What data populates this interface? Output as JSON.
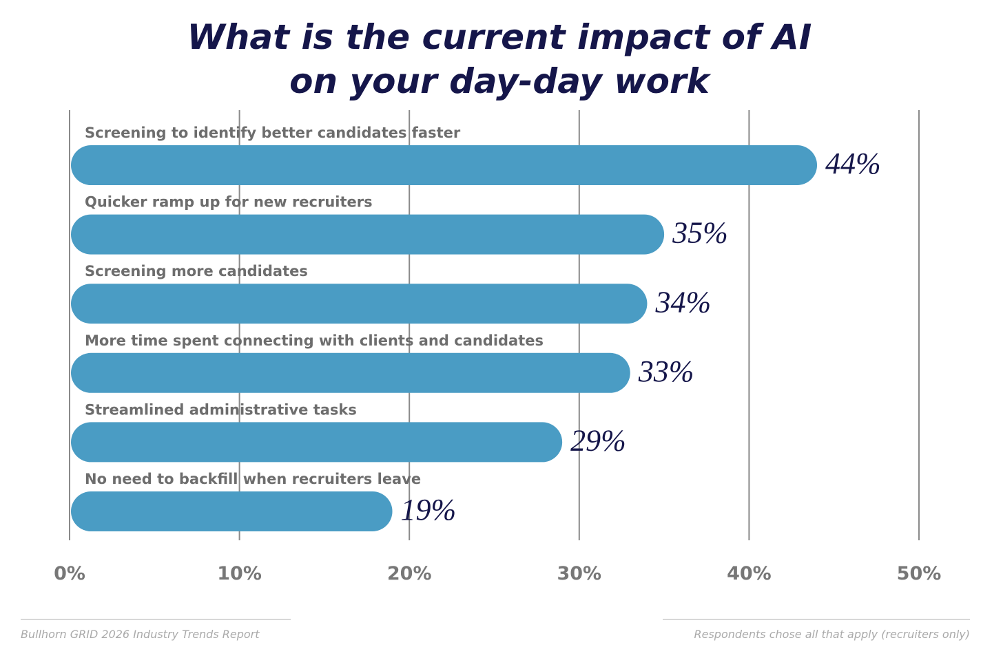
{
  "chart_data": {
    "type": "bar",
    "orientation": "horizontal",
    "title": "What is the current impact of AI on your day-day work",
    "categories": [
      "Screening to identify better candidates faster",
      "Quicker ramp up for new recruiters",
      "Screening more candidates",
      "More time spent connecting with clients and candidates",
      "Streamlined administrative tasks",
      "No need to backfill when recruiters leave"
    ],
    "values": [
      44,
      35,
      34,
      33,
      29,
      19
    ],
    "value_labels": [
      "44%",
      "35%",
      "34%",
      "33%",
      "29%",
      "19%"
    ],
    "color": "#4a9cc4",
    "xlim": [
      0,
      50
    ],
    "xticks": [
      {
        "value": 0,
        "label": "0%"
      },
      {
        "value": 10,
        "label": "10%"
      },
      {
        "value": 20,
        "label": "20%"
      },
      {
        "value": 30,
        "label": "30%"
      },
      {
        "value": 40,
        "label": "40%"
      },
      {
        "value": 50,
        "label": "50%"
      }
    ],
    "grid": true,
    "source": "Bullhorn GRID 2026 Industry Trends Report",
    "note": "Respondents chose all that apply (recruiters only)"
  }
}
